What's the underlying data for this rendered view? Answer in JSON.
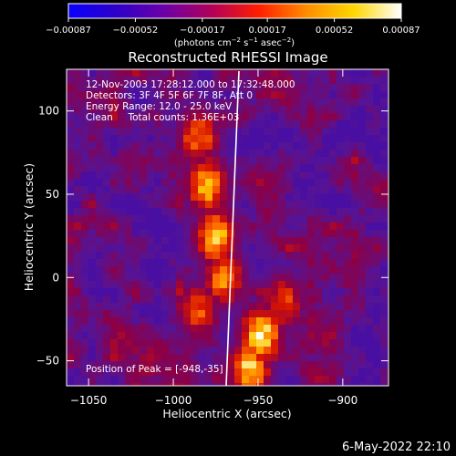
{
  "chart_data": {
    "type": "heatmap",
    "title": "Reconstructed RHESSI Image",
    "xlabel": "Heliocentric X (arcsec)",
    "ylabel": "Heliocentric Y (arcsec)",
    "xlim": [
      -1063,
      -873
    ],
    "ylim": [
      -65,
      125
    ],
    "x_ticks": [
      -1050,
      -1000,
      -950,
      -900
    ],
    "y_ticks": [
      -50,
      0,
      50,
      100
    ],
    "x_tick_labels": [
      "−1050",
      "−1000",
      "−950",
      "−900"
    ],
    "y_tick_labels": [
      "−50",
      "0",
      "50",
      "100"
    ],
    "colorbar": {
      "min": -0.00087,
      "max": 0.00087,
      "ticks": [
        -0.00087,
        -0.00052,
        -0.00017,
        0.00017,
        0.00052,
        0.00087
      ],
      "tick_labels": [
        "−0.00087",
        "−0.00052",
        "−0.00017",
        "0.00017",
        "0.00052",
        "0.00087"
      ],
      "unit_base": "(photons cm",
      "unit_exp1": "−2",
      "unit_mid": " s",
      "unit_exp2": "−1",
      "unit_end": " asec",
      "unit_exp3": "−2",
      "unit_close": ")",
      "colors": [
        "#0a00ff",
        "#2d00c8",
        "#6a00a8",
        "#b0005a",
        "#ff1e00",
        "#ff8c00",
        "#ffd700",
        "#ffffff"
      ]
    },
    "annotations": [
      "12-Nov-2003 17:28:12.000 to 17:32:48.000",
      "Detectors: 3F 4F 5F 6F 7F 8F, Att 0",
      "Energy Range: 12.0 - 25.0 keV",
      "Clean     Total counts: 1.36E+03"
    ],
    "peak_label": "Position of Peak = [-948,-35]",
    "bright_regions": [
      {
        "x": -985,
        "y": 85,
        "level": 0.7
      },
      {
        "x": -980,
        "y": 55,
        "level": 0.85
      },
      {
        "x": -975,
        "y": 25,
        "level": 0.9
      },
      {
        "x": -970,
        "y": 0,
        "level": 0.75
      },
      {
        "x": -985,
        "y": -20,
        "level": 0.6
      },
      {
        "x": -948,
        "y": -35,
        "level": 1.0
      },
      {
        "x": -955,
        "y": -55,
        "level": 0.9
      },
      {
        "x": -935,
        "y": -15,
        "level": 0.6
      }
    ]
  },
  "footer_date": "6-May-2022 22:10"
}
